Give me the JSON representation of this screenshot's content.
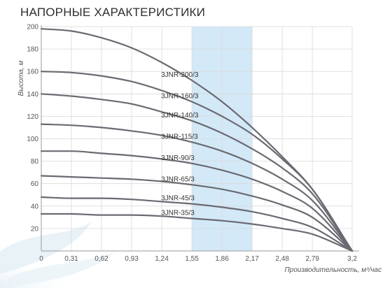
{
  "header": {
    "title": "НАПОРНЫЕ ХАРАКТЕРИСТИКИ"
  },
  "chart_data": {
    "type": "line",
    "title": "НАПОРНЫЕ ХАРАКТЕРИСТИКИ",
    "xlabel": "Производительность, м³/час",
    "ylabel": "Высота, м",
    "xlim": [
      0,
      3.2
    ],
    "ylim": [
      0,
      200
    ],
    "xticks": [
      "0",
      "0,31",
      "0,62",
      "0,93",
      "1,24",
      "1,55",
      "1,86",
      "2,17",
      "2,48",
      "2,79",
      "3,2"
    ],
    "yticks": [
      "20",
      "40",
      "60",
      "80",
      "100",
      "120",
      "140",
      "160",
      "180",
      "200"
    ],
    "grid": true,
    "highlight_band": {
      "from": 1.55,
      "to": 2.17,
      "color": "#d3e9f8"
    },
    "series_color": "#6a6a72",
    "series": [
      {
        "name": "3JNR-200/3",
        "x": [
          0,
          0.31,
          0.62,
          0.93,
          1.24,
          1.55,
          1.86,
          2.17,
          2.48,
          2.79,
          3.2
        ],
        "y": [
          198,
          196,
          190,
          181,
          168,
          152,
          133,
          110,
          84,
          55,
          0
        ]
      },
      {
        "name": "3JNR-160/3",
        "x": [
          0,
          0.31,
          0.62,
          0.93,
          1.24,
          1.55,
          1.86,
          2.17,
          2.48,
          2.79,
          3.2
        ],
        "y": [
          160,
          159,
          156,
          151,
          143,
          133,
          120,
          104,
          82,
          55,
          0
        ]
      },
      {
        "name": "3JNR-140/3",
        "x": [
          0,
          0.31,
          0.62,
          0.93,
          1.24,
          1.55,
          1.86,
          2.17,
          2.48,
          2.79,
          3.2
        ],
        "y": [
          140,
          138,
          135,
          131,
          124,
          116,
          105,
          91,
          74,
          51,
          0
        ]
      },
      {
        "name": "3JNR-115/3",
        "x": [
          0,
          0.31,
          0.62,
          0.93,
          1.24,
          1.55,
          1.86,
          2.17,
          2.48,
          2.79,
          3.2
        ],
        "y": [
          113,
          112,
          110,
          107,
          103,
          97,
          89,
          78,
          64,
          45,
          0
        ]
      },
      {
        "name": "3JNR-90/3",
        "x": [
          0,
          0.31,
          0.62,
          0.93,
          1.24,
          1.55,
          1.86,
          2.17,
          2.48,
          2.79,
          3.2
        ],
        "y": [
          89,
          89,
          87,
          85,
          82,
          78,
          72,
          64,
          53,
          38,
          0
        ]
      },
      {
        "name": "3JNR-65/3",
        "x": [
          0,
          0.31,
          0.62,
          0.93,
          1.24,
          1.55,
          1.86,
          2.17,
          2.48,
          2.79,
          3.2
        ],
        "y": [
          67,
          66,
          65,
          64,
          62,
          59,
          55,
          49,
          41,
          30,
          0
        ]
      },
      {
        "name": "3JNR-45/3",
        "x": [
          0,
          0.31,
          0.62,
          0.93,
          1.24,
          1.55,
          1.86,
          2.17,
          2.48,
          2.79,
          3.2
        ],
        "y": [
          48,
          47,
          47,
          46,
          44,
          42,
          39,
          35,
          29,
          21,
          0
        ]
      },
      {
        "name": "3JNR-35/3",
        "x": [
          0,
          0.31,
          0.62,
          0.93,
          1.24,
          1.55,
          1.86,
          2.17,
          2.48,
          2.79,
          3.2
        ],
        "y": [
          33,
          33,
          32,
          32,
          31,
          29,
          27,
          24,
          20,
          15,
          0
        ]
      }
    ],
    "series_label_x": [
      1.55,
      1.55,
      1.55,
      1.55,
      1.55,
      1.55,
      1.55,
      1.55
    ]
  }
}
